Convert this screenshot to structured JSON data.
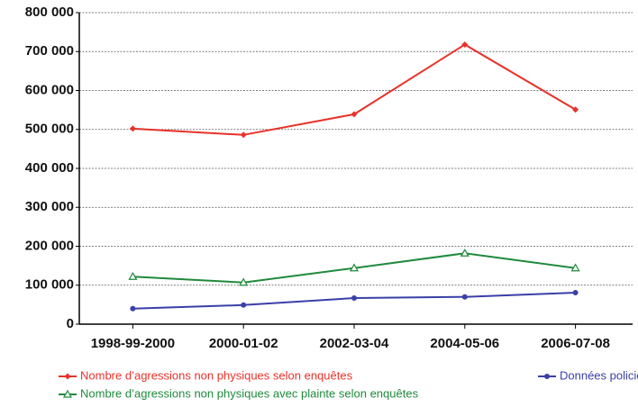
{
  "chart_data": {
    "type": "line",
    "categories": [
      "1998-99-2000",
      "2000-01-02",
      "2002-03-04",
      "2004-05-06",
      "2006-07-08"
    ],
    "series": [
      {
        "name": "Nombre d’agressions non physiques selon enquêtes",
        "color": "#e8322a",
        "marker": "diamond",
        "values": [
          502000,
          486000,
          539000,
          718000,
          551000
        ]
      },
      {
        "name": "Données policières",
        "color": "#3a3fa8",
        "marker": "circle",
        "values": [
          40000,
          49000,
          67000,
          70000,
          81000
        ]
      },
      {
        "name": "Nombre d’agressions non physiques avec plainte selon enquêtes",
        "color": "#1f8a3c",
        "marker": "triangle",
        "values": [
          122000,
          107000,
          144000,
          182000,
          144000
        ]
      }
    ],
    "ylim": [
      0,
      800000
    ],
    "yticks": [
      0,
      {
        "value": 100000,
        "label": "100 000"
      },
      {
        "value": 200000,
        "label": "200 000"
      },
      {
        "value": 300000,
        "label": "300 000"
      },
      {
        "value": 400000,
        "label": "400 000"
      },
      {
        "value": 500000,
        "label": "500 000"
      },
      {
        "value": 600000,
        "label": "600 000"
      },
      {
        "value": 700000,
        "label": "700 000"
      },
      {
        "value": 800000,
        "label": "800 000"
      }
    ],
    "grid": true,
    "legend": "bottom"
  }
}
